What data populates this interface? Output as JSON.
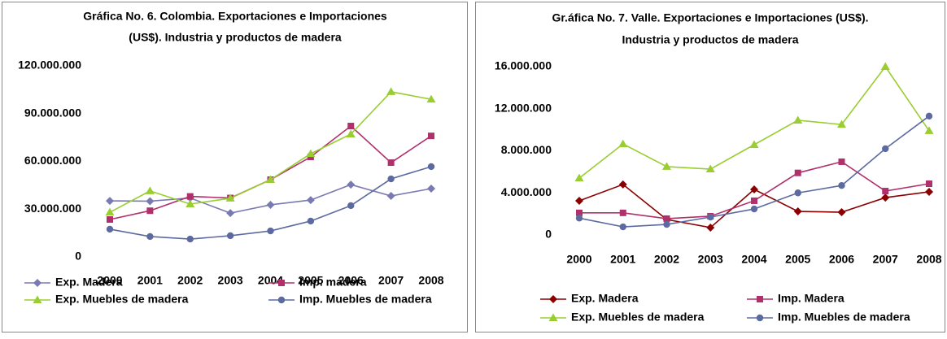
{
  "chart_data": [
    {
      "type": "line",
      "title": [
        "Gráfica No. 6. Colombia. Exportaciones e Importaciones",
        "(US$). Industria y productos de madera"
      ],
      "categories": [
        "2000",
        "2001",
        "2002",
        "2003",
        "2004",
        "2005",
        "2006",
        "2007",
        "2008"
      ],
      "ylim": [
        0,
        120000000
      ],
      "yticks": [
        0,
        {
          "value": 30000000,
          "label": "30.000.000"
        },
        {
          "value": 60000000,
          "label": "60.000.000"
        },
        {
          "value": 90000000,
          "label": "90.000.000"
        },
        {
          "value": 120000000,
          "label": "120.000.000"
        }
      ],
      "legend": "bottom",
      "series": [
        {
          "name": "Exp. Madera",
          "color": "#7a7ab2",
          "marker": "diamond",
          "values": [
            35200000,
            35000000,
            37000000,
            27500000,
            32700000,
            35700000,
            45400000,
            38300000,
            42900000
          ]
        },
        {
          "name": "Imp. madera",
          "color": "#b0306b",
          "marker": "square",
          "values": [
            23500000,
            29000000,
            38000000,
            37000000,
            48500000,
            62800000,
            82200000,
            59200000,
            76000000
          ]
        },
        {
          "name": "Exp. Muebles de madera",
          "color": "#9acd32",
          "marker": "triangle",
          "values": [
            28000000,
            41400000,
            33200000,
            36800000,
            48500000,
            64800000,
            77100000,
            103700000,
            99000000
          ]
        },
        {
          "name": "Imp. Muebles de madera",
          "color": "#5d6aa0",
          "marker": "circle",
          "values": [
            17400000,
            12800000,
            11200000,
            13300000,
            16300000,
            22500000,
            32200000,
            49000000,
            56700000
          ]
        }
      ]
    },
    {
      "type": "line",
      "title": [
        "Gr.áfica No. 7. Valle. Exportaciones e Importaciones (US$).",
        "Industria y productos de madera"
      ],
      "categories": [
        "2000",
        "2001",
        "2002",
        "2003",
        "2004",
        "2005",
        "2006",
        "2007",
        "2008"
      ],
      "ylim": [
        0,
        16000000
      ],
      "yticks": [
        0,
        {
          "value": 4000000,
          "label": "4.000.000"
        },
        {
          "value": 8000000,
          "label": "8.000.000"
        },
        {
          "value": 12000000,
          "label": "12.000.000"
        },
        {
          "value": 16000000,
          "label": "16.000.000"
        }
      ],
      "legend": "bottom",
      "series": [
        {
          "name": "Exp. Madera",
          "color": "#8b0000",
          "marker": "diamond",
          "values": [
            3250000,
            4800000,
            1470000,
            700000,
            4330000,
            2240000,
            2160000,
            3550000,
            4100000
          ]
        },
        {
          "name": "Imp. Madera",
          "color": "#b0306b",
          "marker": "square",
          "values": [
            2100000,
            2100000,
            1550000,
            1780000,
            3250000,
            5900000,
            6960000,
            4170000,
            4870000
          ]
        },
        {
          "name": "Exp. Muebles de madera",
          "color": "#9acd32",
          "marker": "triangle",
          "values": [
            5400000,
            8650000,
            6500000,
            6260000,
            8580000,
            10900000,
            10500000,
            16000000,
            9900000
          ]
        },
        {
          "name": "Imp. Muebles de madera",
          "color": "#5d6aa0",
          "marker": "circle",
          "values": [
            1600000,
            770000,
            1000000,
            1700000,
            2470000,
            4000000,
            4700000,
            8200000,
            11300000
          ]
        }
      ]
    }
  ]
}
